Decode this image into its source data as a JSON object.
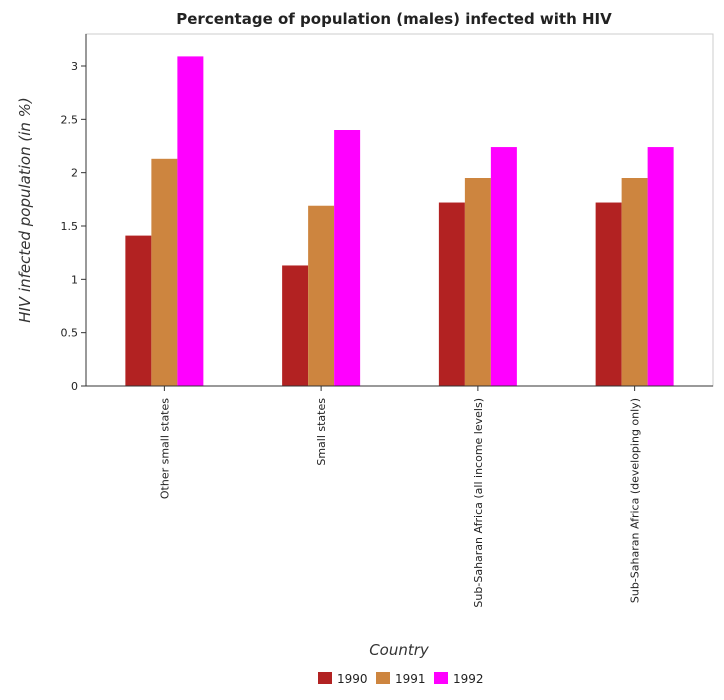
{
  "chart_data": {
    "type": "bar",
    "title": "Percentage of population (males) infected with HIV",
    "xlabel": "Country",
    "ylabel": "HIV infected population (in %)",
    "categories": [
      "Other small states",
      "Small states",
      "Sub-Saharan Africa (all income levels)",
      "Sub-Saharan Africa (developing only)"
    ],
    "series": [
      {
        "name": "1990",
        "color": "#b22222",
        "values": [
          1.41,
          1.13,
          1.72,
          1.72
        ]
      },
      {
        "name": "1991",
        "color": "#cd853f",
        "values": [
          2.13,
          1.69,
          1.95,
          1.95
        ]
      },
      {
        "name": "1992",
        "color": "#ff00ff",
        "values": [
          3.09,
          2.4,
          2.24,
          2.24
        ]
      }
    ],
    "ylim": [
      0,
      3.3
    ],
    "yticks": [
      0,
      0.5,
      1,
      1.5,
      2,
      2.5,
      3
    ],
    "ytick_labels": [
      "0",
      "0.5",
      "1",
      "1.5",
      "2",
      "2.5",
      "3"
    ],
    "grid": false,
    "legend_position": "bottom-center"
  }
}
